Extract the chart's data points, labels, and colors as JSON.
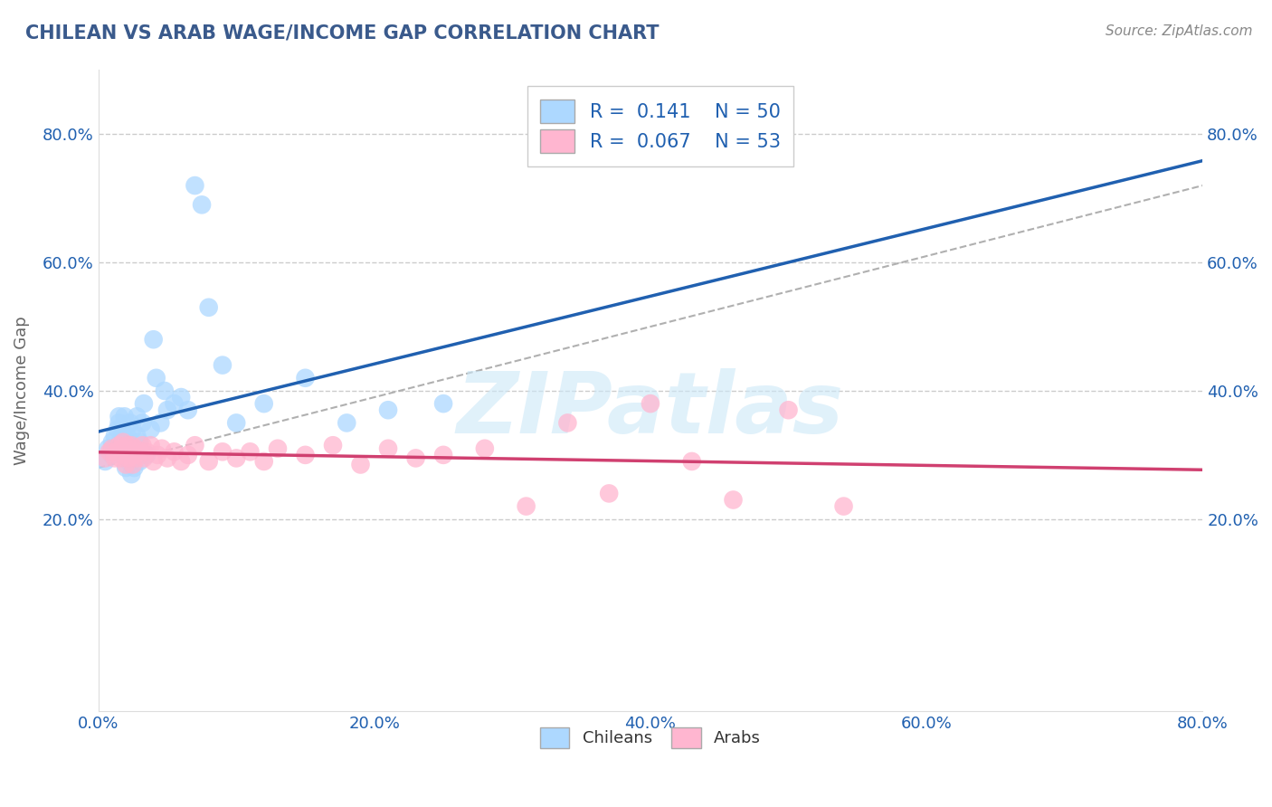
{
  "title": "CHILEAN VS ARAB WAGE/INCOME GAP CORRELATION CHART",
  "source": "Source: ZipAtlas.com",
  "ylabel": "Wage/Income Gap",
  "xlim": [
    0.0,
    0.8
  ],
  "ylim": [
    -0.1,
    0.9
  ],
  "xticks": [
    0.0,
    0.2,
    0.4,
    0.6,
    0.8
  ],
  "xtick_labels": [
    "0.0%",
    "20.0%",
    "40.0%",
    "60.0%",
    "80.0%"
  ],
  "yticks": [
    0.2,
    0.4,
    0.6,
    0.8
  ],
  "ytick_labels": [
    "20.0%",
    "40.0%",
    "60.0%",
    "80.0%"
  ],
  "grid_color": "#cccccc",
  "background_color": "#ffffff",
  "title_color": "#3a5a8c",
  "chilean_color": "#add8ff",
  "arab_color": "#ffb6d0",
  "chilean_line_color": "#2060b0",
  "arab_line_color": "#d04070",
  "trend_line_color": "#b0b0b0",
  "R_chilean": "0.141",
  "N_chilean": "50",
  "R_arab": "0.067",
  "N_arab": "53",
  "legend_labels": [
    "Chileans",
    "Arabs"
  ],
  "watermark": "ZIPatlas",
  "chilean_x": [
    0.005,
    0.007,
    0.01,
    0.01,
    0.012,
    0.014,
    0.015,
    0.015,
    0.016,
    0.017,
    0.018,
    0.018,
    0.019,
    0.02,
    0.02,
    0.021,
    0.022,
    0.022,
    0.023,
    0.024,
    0.025,
    0.025,
    0.026,
    0.027,
    0.028,
    0.028,
    0.03,
    0.03,
    0.032,
    0.033,
    0.035,
    0.038,
    0.04,
    0.042,
    0.045,
    0.048,
    0.05,
    0.055,
    0.06,
    0.065,
    0.07,
    0.075,
    0.08,
    0.09,
    0.1,
    0.12,
    0.15,
    0.18,
    0.21,
    0.25
  ],
  "chilean_y": [
    0.29,
    0.31,
    0.3,
    0.32,
    0.33,
    0.34,
    0.35,
    0.36,
    0.32,
    0.34,
    0.3,
    0.33,
    0.36,
    0.28,
    0.31,
    0.33,
    0.29,
    0.32,
    0.35,
    0.27,
    0.3,
    0.34,
    0.28,
    0.31,
    0.33,
    0.36,
    0.29,
    0.32,
    0.35,
    0.38,
    0.3,
    0.34,
    0.48,
    0.42,
    0.35,
    0.4,
    0.37,
    0.38,
    0.39,
    0.37,
    0.72,
    0.69,
    0.53,
    0.44,
    0.35,
    0.38,
    0.42,
    0.35,
    0.37,
    0.38
  ],
  "arab_x": [
    0.005,
    0.008,
    0.01,
    0.012,
    0.013,
    0.015,
    0.016,
    0.017,
    0.018,
    0.02,
    0.02,
    0.021,
    0.022,
    0.023,
    0.024,
    0.025,
    0.026,
    0.027,
    0.028,
    0.03,
    0.032,
    0.033,
    0.035,
    0.038,
    0.04,
    0.043,
    0.046,
    0.05,
    0.055,
    0.06,
    0.065,
    0.07,
    0.08,
    0.09,
    0.1,
    0.11,
    0.12,
    0.13,
    0.15,
    0.17,
    0.19,
    0.21,
    0.23,
    0.25,
    0.28,
    0.31,
    0.34,
    0.37,
    0.4,
    0.43,
    0.46,
    0.5,
    0.54
  ],
  "arab_y": [
    0.295,
    0.305,
    0.31,
    0.295,
    0.305,
    0.315,
    0.295,
    0.31,
    0.32,
    0.285,
    0.305,
    0.315,
    0.295,
    0.305,
    0.315,
    0.285,
    0.3,
    0.31,
    0.295,
    0.305,
    0.315,
    0.295,
    0.305,
    0.315,
    0.29,
    0.3,
    0.31,
    0.295,
    0.305,
    0.29,
    0.3,
    0.315,
    0.29,
    0.305,
    0.295,
    0.305,
    0.29,
    0.31,
    0.3,
    0.315,
    0.285,
    0.31,
    0.295,
    0.3,
    0.31,
    0.22,
    0.35,
    0.24,
    0.38,
    0.29,
    0.23,
    0.37,
    0.22
  ]
}
